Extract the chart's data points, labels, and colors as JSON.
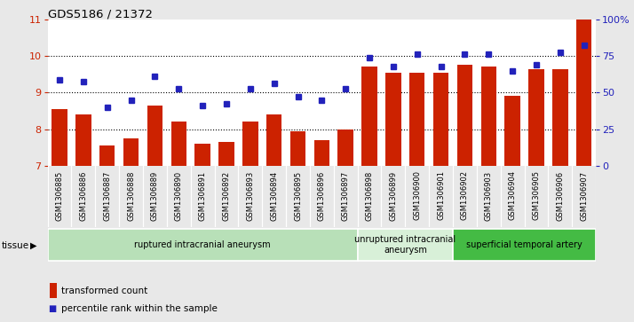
{
  "title": "GDS5186 / 21372",
  "samples": [
    "GSM1306885",
    "GSM1306886",
    "GSM1306887",
    "GSM1306888",
    "GSM1306889",
    "GSM1306890",
    "GSM1306891",
    "GSM1306892",
    "GSM1306893",
    "GSM1306894",
    "GSM1306895",
    "GSM1306896",
    "GSM1306897",
    "GSM1306898",
    "GSM1306899",
    "GSM1306900",
    "GSM1306901",
    "GSM1306902",
    "GSM1306903",
    "GSM1306904",
    "GSM1306905",
    "GSM1306906",
    "GSM1306907"
  ],
  "bar_values": [
    8.55,
    8.4,
    7.55,
    7.75,
    8.65,
    8.2,
    7.6,
    7.65,
    8.2,
    8.4,
    7.95,
    7.7,
    8.0,
    9.7,
    9.55,
    9.55,
    9.55,
    9.75,
    9.7,
    8.9,
    9.65,
    9.65,
    11.0
  ],
  "dot_values": [
    9.35,
    9.3,
    8.6,
    8.8,
    9.45,
    9.1,
    8.65,
    8.7,
    9.1,
    9.25,
    8.88,
    8.8,
    9.1,
    9.95,
    9.7,
    10.05,
    9.72,
    10.05,
    10.05,
    9.6,
    9.75,
    10.1,
    10.3
  ],
  "ylim_left": [
    7,
    11
  ],
  "ylim_right": [
    0,
    100
  ],
  "yticks_left": [
    7,
    8,
    9,
    10,
    11
  ],
  "yticks_right": [
    0,
    25,
    50,
    75,
    100
  ],
  "bar_color": "#cc2200",
  "dot_color": "#2222bb",
  "tissue_groups": [
    {
      "label": "ruptured intracranial aneurysm",
      "start": 0,
      "end": 13,
      "color": "#b8e0b8"
    },
    {
      "label": "unruptured intracranial\naneurysm",
      "start": 13,
      "end": 17,
      "color": "#d8f0d8"
    },
    {
      "label": "superficial temporal artery",
      "start": 17,
      "end": 23,
      "color": "#44bb44"
    }
  ],
  "tissue_label": "tissue",
  "legend_bar": "transformed count",
  "legend_dot": "percentile rank within the sample",
  "fig_bg_color": "#e8e8e8",
  "plot_bg_color": "#ffffff",
  "xtick_bg_color": "#d4d4d4",
  "right_axis_color": "#2222bb",
  "left_axis_color": "#cc2200",
  "grid_yticks": [
    8,
    9,
    10
  ]
}
